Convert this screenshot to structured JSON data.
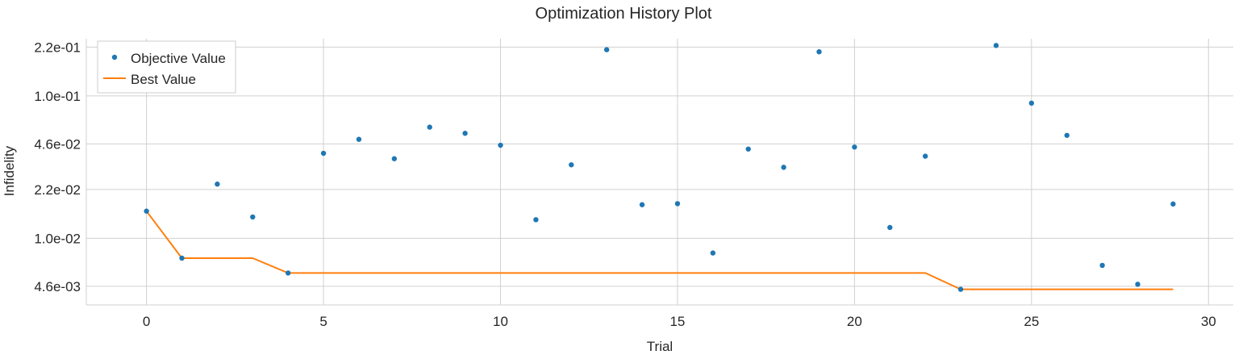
{
  "chart_data": {
    "type": "scatter",
    "title": "Optimization History Plot",
    "xlabel": "Trial",
    "ylabel": "Infidelity",
    "yscale": "log",
    "xlim": [
      -1.7,
      30.7
    ],
    "ylim": [
      0.0034,
      0.252
    ],
    "xticks": [
      0,
      5,
      10,
      15,
      20,
      25,
      30
    ],
    "xtick_labels": [
      "0",
      "5",
      "10",
      "15",
      "20",
      "25",
      "30"
    ],
    "yticks": [
      0.0046,
      0.01,
      0.022,
      0.046,
      0.1,
      0.22
    ],
    "ytick_labels": [
      "4.6e-03",
      "1.0e-02",
      "2.2e-02",
      "4.6e-02",
      "1.0e-01",
      "2.2e-01"
    ],
    "grid": true,
    "legend_position": "top-left",
    "series": [
      {
        "name": "Objective Value",
        "kind": "scatter",
        "color": "#1f77b4",
        "x": [
          0,
          1,
          2,
          3,
          4,
          5,
          6,
          7,
          8,
          9,
          10,
          11,
          12,
          13,
          14,
          15,
          16,
          17,
          18,
          19,
          20,
          21,
          22,
          23,
          24,
          25,
          26,
          27,
          28,
          29
        ],
        "y": [
          0.0155,
          0.00725,
          0.024,
          0.0141,
          0.0057,
          0.0395,
          0.0495,
          0.0362,
          0.0603,
          0.0546,
          0.045,
          0.0135,
          0.0328,
          0.211,
          0.0172,
          0.0175,
          0.00788,
          0.0423,
          0.0315,
          0.204,
          0.0437,
          0.0119,
          0.0377,
          0.00438,
          0.226,
          0.0889,
          0.0528,
          0.00645,
          0.00475,
          0.0174
        ]
      },
      {
        "name": "Best Value",
        "kind": "line",
        "color": "#ff7f0e",
        "x": [
          0,
          1,
          2,
          3,
          4,
          5,
          6,
          7,
          8,
          9,
          10,
          11,
          12,
          13,
          14,
          15,
          16,
          17,
          18,
          19,
          20,
          21,
          22,
          23,
          24,
          25,
          26,
          27,
          28,
          29
        ],
        "y": [
          0.0155,
          0.00725,
          0.00725,
          0.00725,
          0.0057,
          0.0057,
          0.0057,
          0.0057,
          0.0057,
          0.0057,
          0.0057,
          0.0057,
          0.0057,
          0.0057,
          0.0057,
          0.0057,
          0.0057,
          0.0057,
          0.0057,
          0.0057,
          0.0057,
          0.0057,
          0.0057,
          0.00438,
          0.00438,
          0.00438,
          0.00438,
          0.00438,
          0.00438,
          0.00438
        ]
      }
    ]
  }
}
